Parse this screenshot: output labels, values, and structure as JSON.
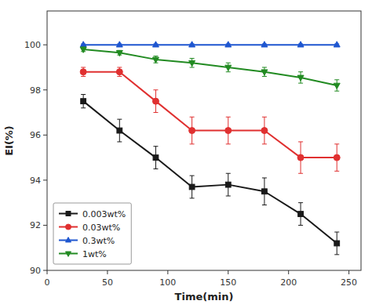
{
  "chart_data": {
    "type": "line",
    "x": [
      30,
      60,
      90,
      120,
      150,
      180,
      210,
      240
    ],
    "series": [
      {
        "name": "0.003wt%",
        "color": "#1a1a1a",
        "marker": "square",
        "values": [
          97.5,
          96.2,
          95.0,
          93.7,
          93.8,
          93.5,
          92.5,
          91.2
        ],
        "yerr": [
          0.3,
          0.5,
          0.5,
          0.5,
          0.5,
          0.6,
          0.5,
          0.5
        ]
      },
      {
        "name": "0.03wt%",
        "color": "#e03030",
        "marker": "circle",
        "values": [
          98.8,
          98.8,
          97.5,
          96.2,
          96.2,
          96.2,
          95.0,
          95.0
        ],
        "yerr": [
          0.2,
          0.2,
          0.5,
          0.6,
          0.6,
          0.6,
          0.7,
          0.6
        ]
      },
      {
        "name": "0.3wt%",
        "color": "#1e56d0",
        "marker": "triangle-up",
        "values": [
          100.0,
          100.0,
          100.0,
          100.0,
          100.0,
          100.0,
          100.0,
          100.0
        ],
        "yerr": [
          0.04,
          0.04,
          0.04,
          0.04,
          0.04,
          0.04,
          0.04,
          0.04
        ]
      },
      {
        "name": "1wt%",
        "color": "#228B22",
        "marker": "triangle-down",
        "values": [
          99.8,
          99.65,
          99.35,
          99.2,
          99.0,
          98.8,
          98.55,
          98.2
        ],
        "yerr": [
          0.1,
          0.1,
          0.15,
          0.2,
          0.2,
          0.2,
          0.25,
          0.25
        ]
      }
    ],
    "xlabel": "Time(min)",
    "ylabel": "EI(%)",
    "xlim": [
      0,
      260
    ],
    "ylim": [
      90,
      101.5
    ],
    "xticks": [
      0,
      50,
      100,
      150,
      200,
      250
    ],
    "yticks": [
      90,
      92,
      94,
      96,
      98,
      100
    ],
    "legend": "lower left",
    "grid": false
  }
}
